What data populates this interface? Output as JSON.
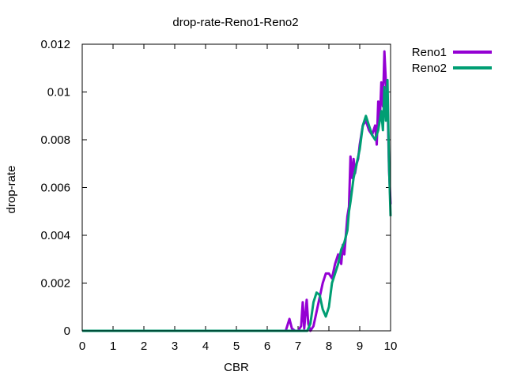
{
  "chart_data": {
    "type": "line",
    "title": "drop-rate-Reno1-Reno2",
    "xlabel": "CBR",
    "ylabel": "drop-rate",
    "xlim": [
      0,
      10
    ],
    "ylim": [
      0,
      0.012
    ],
    "xticks": [
      0,
      1,
      2,
      3,
      4,
      5,
      6,
      7,
      8,
      9,
      10
    ],
    "yticks": [
      0,
      0.002,
      0.004,
      0.006,
      0.008,
      0.01,
      0.012
    ],
    "grid": false,
    "legend": "top-right, outside plot",
    "series": [
      {
        "name": "Reno1",
        "color": "#9400d3",
        "x": [
          0,
          6.6,
          6.72,
          6.8,
          6.9,
          7.0,
          7.1,
          7.15,
          7.2,
          7.28,
          7.33,
          7.4,
          7.5,
          7.6,
          7.7,
          7.8,
          7.9,
          8.0,
          8.1,
          8.2,
          8.3,
          8.4,
          8.45,
          8.5,
          8.6,
          8.65,
          8.7,
          8.75,
          8.8,
          8.85,
          8.9,
          8.95,
          9.0,
          9.1,
          9.2,
          9.3,
          9.4,
          9.5,
          9.55,
          9.6,
          9.65,
          9.7,
          9.75,
          9.8,
          9.85,
          9.9,
          9.95,
          10.0
        ],
        "y": [
          0,
          0,
          0.0005,
          0.0001,
          0,
          0,
          0.0002,
          0.0012,
          0.0001,
          0.0013,
          0.0003,
          0,
          0.0002,
          0.0008,
          0.0014,
          0.002,
          0.0024,
          0.0024,
          0.0022,
          0.0028,
          0.0032,
          0.0028,
          0.0036,
          0.0032,
          0.0048,
          0.0052,
          0.0073,
          0.0064,
          0.0072,
          0.0066,
          0.007,
          0.0072,
          0.0078,
          0.0086,
          0.0088,
          0.0084,
          0.0082,
          0.0086,
          0.0078,
          0.0096,
          0.0088,
          0.0104,
          0.0094,
          0.0117,
          0.0104,
          0.0098,
          0.0068,
          0.0053
        ]
      },
      {
        "name": "Reno2",
        "color": "#009e73",
        "x": [
          0,
          7.3,
          7.4,
          7.5,
          7.6,
          7.7,
          7.8,
          7.9,
          8.0,
          8.1,
          8.2,
          8.3,
          8.4,
          8.5,
          8.6,
          8.65,
          8.7,
          8.8,
          8.9,
          9.0,
          9.1,
          9.2,
          9.3,
          9.4,
          9.5,
          9.6,
          9.7,
          9.75,
          9.8,
          9.85,
          9.9,
          9.95,
          10.0
        ],
        "y": [
          0,
          0,
          0.0003,
          0.0012,
          0.0016,
          0.0015,
          0.0009,
          0.0006,
          0.001,
          0.002,
          0.0024,
          0.0028,
          0.0034,
          0.0037,
          0.0042,
          0.005,
          0.0054,
          0.0064,
          0.007,
          0.0076,
          0.0086,
          0.009,
          0.0086,
          0.0082,
          0.008,
          0.0084,
          0.0092,
          0.0084,
          0.0102,
          0.0088,
          0.0105,
          0.007,
          0.0048
        ]
      }
    ]
  }
}
